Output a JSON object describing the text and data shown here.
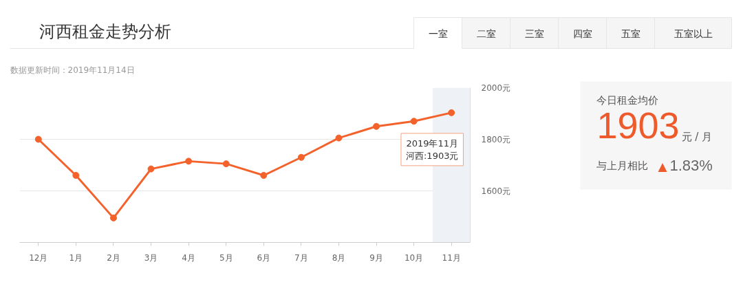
{
  "chart_data": [
    {
      "type": "line",
      "title": "河西租金走势分析",
      "subtitle": "数据更新时间：2019年11月14日",
      "categories": [
        "12月",
        "1月",
        "2月",
        "3月",
        "4月",
        "5月",
        "6月",
        "7月",
        "8月",
        "9月",
        "10月",
        "11月"
      ],
      "series": [
        {
          "color": "#f4622c",
          "values": [
            1800,
            1660,
            1495,
            1685,
            1715,
            1705,
            1660,
            1730,
            1805,
            1850,
            1870,
            1903
          ]
        }
      ],
      "ylim": [
        1400,
        2000
      ],
      "yticks": [
        {
          "value": 1600,
          "label": "1600元"
        },
        {
          "value": 1800,
          "label": "1800元"
        },
        {
          "value": 2000,
          "label": "2000元"
        }
      ],
      "grid": "y",
      "marker": "circle",
      "bands": [
        {
          "axis": "x",
          "from": "11月",
          "to": "11月",
          "color": "#eef1f6"
        }
      ],
      "annotations": [
        "一室",
        "二室",
        "三室",
        "四室",
        "五室",
        "五室以上",
        {
          "text": "2019年11月河西:1903元",
          "x": "11月",
          "y": 1903
        }
      ]
    },
    {
      "type": "other",
      "title": "今日租金均价",
      "annotations": [
        "1903",
        "元 / 月",
        "与上月相比",
        "▲1.83%"
      ]
    }
  ]
}
